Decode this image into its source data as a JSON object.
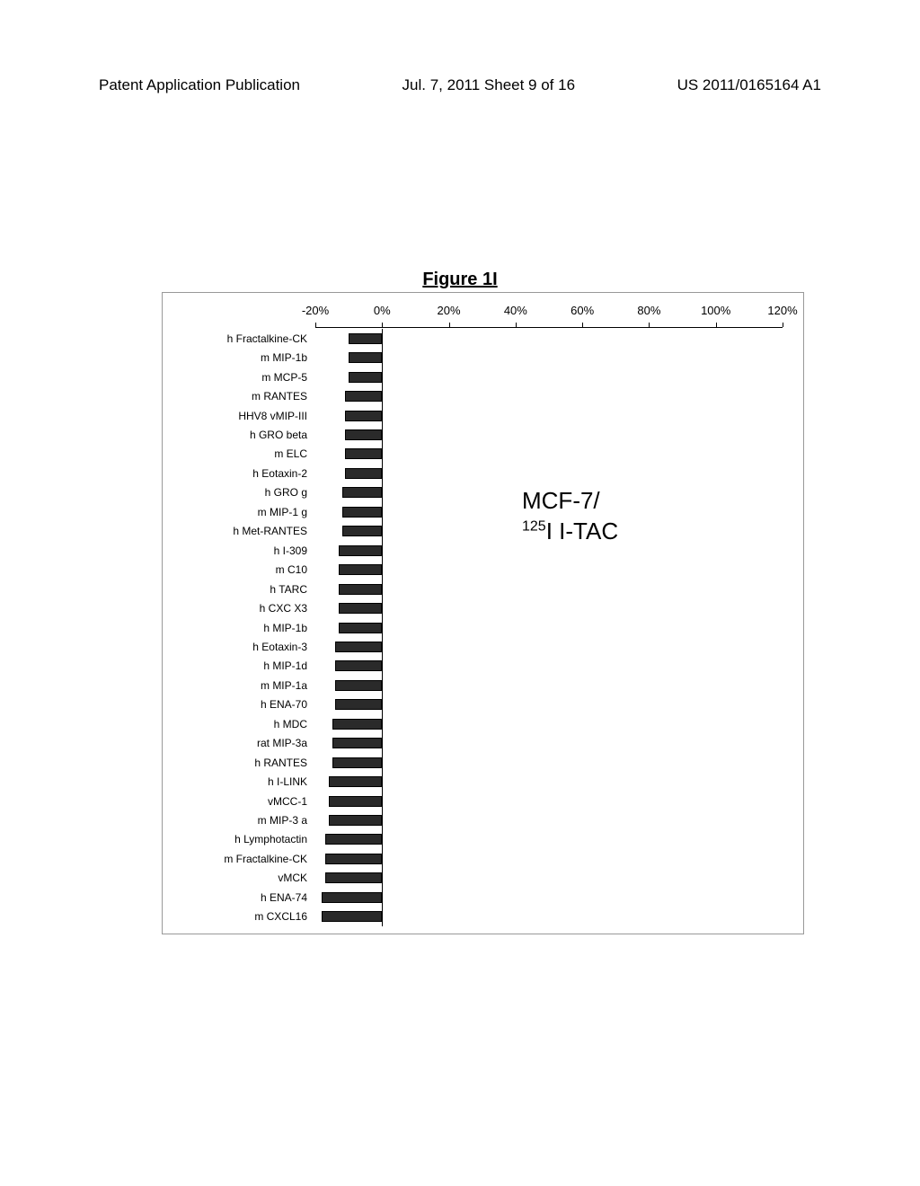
{
  "header": {
    "left": "Patent Application Publication",
    "mid": "Jul. 7, 2011   Sheet 9 of 16",
    "right": "US 2011/0165164 A1"
  },
  "figure_title": "Figure 1I",
  "chart": {
    "type": "bar-horizontal",
    "x_axis": {
      "min_pct": -20,
      "max_pct": 120,
      "ticks": [
        -20,
        0,
        20,
        40,
        60,
        80,
        100,
        120
      ],
      "tick_labels": [
        "-20%",
        "0%",
        "20%",
        "40%",
        "60%",
        "80%",
        "100%",
        "120%"
      ]
    },
    "bar_color": "#2a2a2a",
    "label_fontsize": 12,
    "tick_fontsize": 13,
    "background": "#ffffff",
    "series": [
      {
        "label": "h Fractalkine-CK",
        "value": -10
      },
      {
        "label": "m MIP-1b",
        "value": -10
      },
      {
        "label": "m MCP-5",
        "value": -10
      },
      {
        "label": "m RANTES",
        "value": -11
      },
      {
        "label": "HHV8 vMIP-III",
        "value": -11
      },
      {
        "label": "h GRO beta",
        "value": -11
      },
      {
        "label": "m ELC",
        "value": -11
      },
      {
        "label": "h Eotaxin-2",
        "value": -11
      },
      {
        "label": "h GRO g",
        "value": -12
      },
      {
        "label": "m MIP-1 g",
        "value": -12
      },
      {
        "label": "h Met-RANTES",
        "value": -12
      },
      {
        "label": "h I-309",
        "value": -13
      },
      {
        "label": "m C10",
        "value": -13
      },
      {
        "label": "h TARC",
        "value": -13
      },
      {
        "label": "h CXC X3",
        "value": -13
      },
      {
        "label": "h MIP-1b",
        "value": -13
      },
      {
        "label": "h Eotaxin-3",
        "value": -14
      },
      {
        "label": "h MIP-1d",
        "value": -14
      },
      {
        "label": "m MIP-1a",
        "value": -14
      },
      {
        "label": "h ENA-70",
        "value": -14
      },
      {
        "label": "h MDC",
        "value": -15
      },
      {
        "label": "rat MIP-3a",
        "value": -15
      },
      {
        "label": "h RANTES",
        "value": -15
      },
      {
        "label": "h I-LINK",
        "value": -16
      },
      {
        "label": "vMCC-1",
        "value": -16
      },
      {
        "label": "m MIP-3 a",
        "value": -16
      },
      {
        "label": "h Lymphotactin",
        "value": -17
      },
      {
        "label": "m Fractalkine-CK",
        "value": -17
      },
      {
        "label": "vMCK",
        "value": -17
      },
      {
        "label": "h ENA-74",
        "value": -18
      },
      {
        "label": "m CXCL16",
        "value": -18
      }
    ],
    "annotation": {
      "line1": "MCF-7/",
      "line2_prefix": "125",
      "line2_rest": "I I-TAC"
    }
  }
}
